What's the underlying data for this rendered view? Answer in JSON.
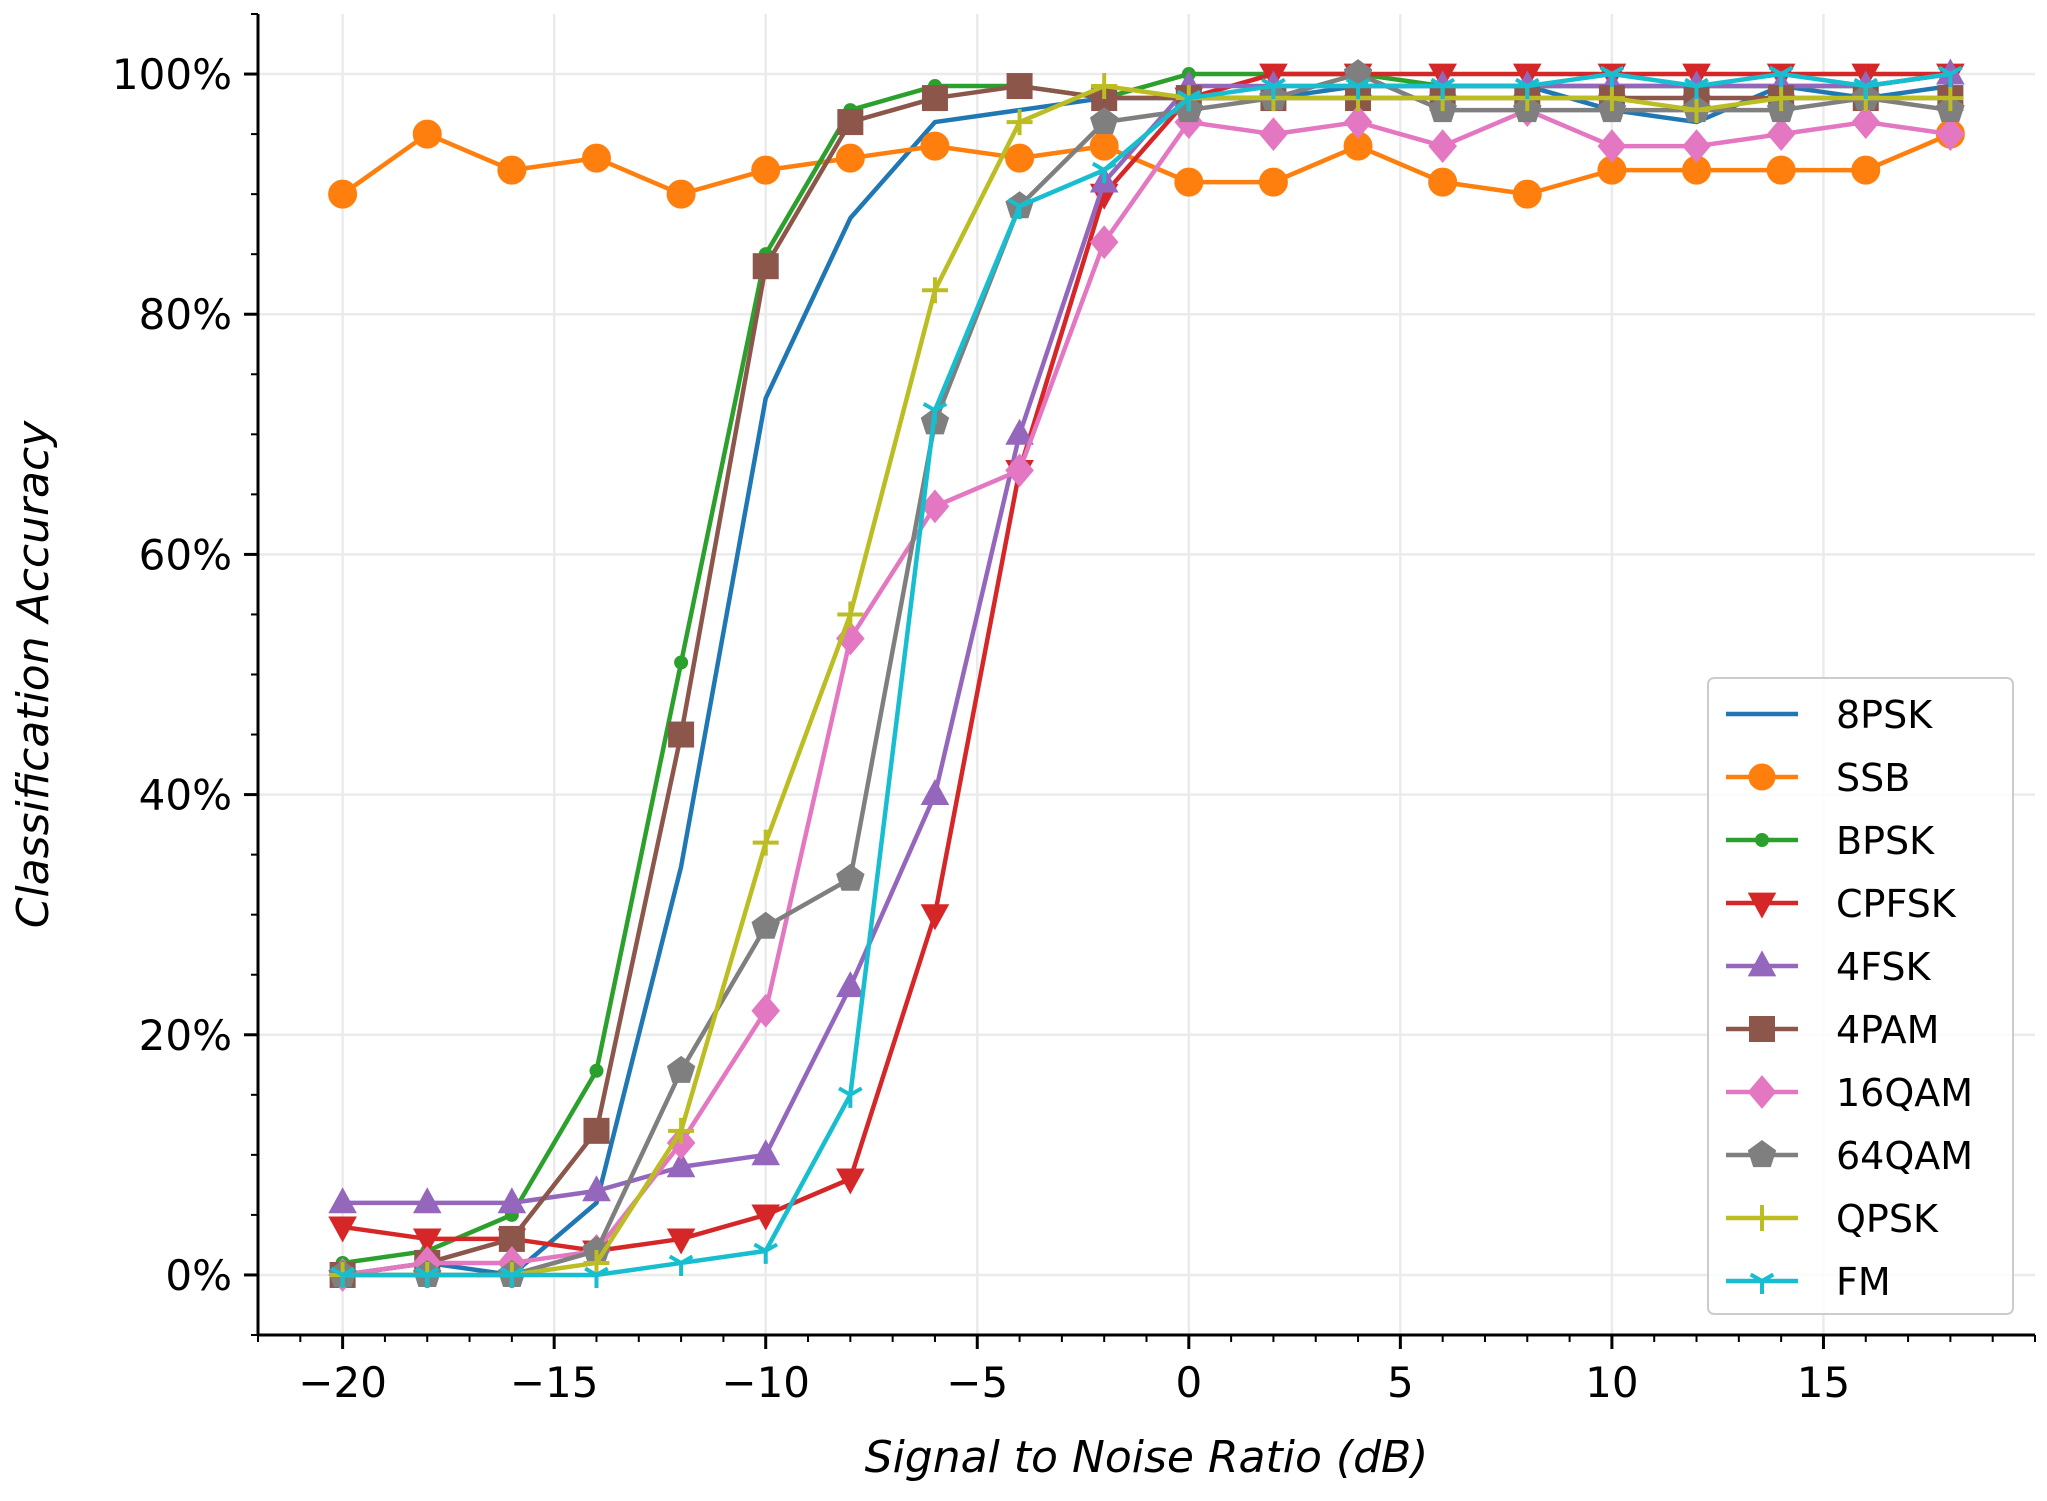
{
  "chart_data": {
    "type": "line",
    "xlabel": "Signal to Noise Ratio (dB)",
    "ylabel": "Classification Accuracy",
    "xlim": [
      -22,
      20
    ],
    "ylim": [
      -0.05,
      1.05
    ],
    "x": [
      -20,
      -18,
      -16,
      -14,
      -12,
      -10,
      -8,
      -6,
      -4,
      -2,
      0,
      2,
      4,
      6,
      8,
      10,
      12,
      14,
      16,
      18
    ],
    "x_ticks": [
      -20,
      -15,
      -10,
      -5,
      0,
      5,
      10,
      15
    ],
    "x_tick_labels": [
      "−20",
      "−15",
      "−10",
      "−5",
      "0",
      "5",
      "10",
      "15"
    ],
    "y_ticks": [
      0,
      0.2,
      0.4,
      0.6,
      0.8,
      1.0
    ],
    "y_tick_labels": [
      "0%",
      "20%",
      "40%",
      "60%",
      "80%",
      "100%"
    ],
    "grid": true,
    "legend_position": "lower-right",
    "series": [
      {
        "name": "8PSK",
        "color": "#1f77b4",
        "marker": "none",
        "values": [
          0.0,
          0.01,
          0.0,
          0.06,
          0.34,
          0.73,
          0.88,
          0.96,
          0.97,
          0.98,
          0.98,
          0.98,
          0.99,
          0.99,
          0.99,
          0.97,
          0.96,
          0.99,
          0.98,
          0.99
        ]
      },
      {
        "name": "SSB",
        "color": "#ff7f0e",
        "marker": "circle",
        "values": [
          0.9,
          0.95,
          0.92,
          0.93,
          0.9,
          0.92,
          0.93,
          0.94,
          0.93,
          0.94,
          0.91,
          0.91,
          0.94,
          0.91,
          0.9,
          0.92,
          0.92,
          0.92,
          0.92,
          0.95
        ]
      },
      {
        "name": "BPSK",
        "color": "#2ca02c",
        "marker": "point",
        "values": [
          0.01,
          0.02,
          0.05,
          0.17,
          0.51,
          0.85,
          0.97,
          0.99,
          0.99,
          0.98,
          1.0,
          1.0,
          1.0,
          0.99,
          0.99,
          0.99,
          0.99,
          0.99,
          0.99,
          1.0
        ]
      },
      {
        "name": "CPFSK",
        "color": "#d62728",
        "marker": "triangle-down",
        "values": [
          0.04,
          0.03,
          0.03,
          0.02,
          0.03,
          0.05,
          0.08,
          0.3,
          0.67,
          0.9,
          0.98,
          1.0,
          1.0,
          1.0,
          1.0,
          1.0,
          1.0,
          1.0,
          1.0,
          1.0
        ]
      },
      {
        "name": "4FSK",
        "color": "#9467bd",
        "marker": "triangle-up",
        "values": [
          0.06,
          0.06,
          0.06,
          0.07,
          0.09,
          0.1,
          0.24,
          0.4,
          0.7,
          0.91,
          0.99,
          0.99,
          0.99,
          0.99,
          0.99,
          0.99,
          0.99,
          0.99,
          0.99,
          1.0
        ]
      },
      {
        "name": "4PAM",
        "color": "#8c564b",
        "marker": "square",
        "values": [
          0.0,
          0.01,
          0.03,
          0.12,
          0.45,
          0.84,
          0.96,
          0.98,
          0.99,
          0.98,
          0.98,
          0.98,
          0.98,
          0.98,
          0.98,
          0.98,
          0.98,
          0.98,
          0.98,
          0.98
        ]
      },
      {
        "name": "16QAM",
        "color": "#e377c2",
        "marker": "diamond",
        "values": [
          0.0,
          0.01,
          0.01,
          0.02,
          0.11,
          0.22,
          0.53,
          0.64,
          0.67,
          0.86,
          0.96,
          0.95,
          0.96,
          0.94,
          0.97,
          0.94,
          0.94,
          0.95,
          0.96,
          0.95
        ]
      },
      {
        "name": "64QAM",
        "color": "#7f7f7f",
        "marker": "pentagon",
        "values": [
          0.0,
          0.0,
          0.0,
          0.02,
          0.17,
          0.29,
          0.33,
          0.71,
          0.89,
          0.96,
          0.97,
          0.98,
          1.0,
          0.97,
          0.97,
          0.97,
          0.97,
          0.97,
          0.98,
          0.97
        ]
      },
      {
        "name": "QPSK",
        "color": "#bcbd22",
        "marker": "plus",
        "values": [
          0.0,
          0.0,
          0.0,
          0.01,
          0.12,
          0.36,
          0.55,
          0.82,
          0.96,
          0.99,
          0.98,
          0.98,
          0.98,
          0.98,
          0.98,
          0.98,
          0.97,
          0.98,
          0.98,
          0.98
        ]
      },
      {
        "name": "FM",
        "color": "#17becf",
        "marker": "tri-down",
        "values": [
          0.0,
          0.0,
          0.0,
          0.0,
          0.01,
          0.02,
          0.15,
          0.72,
          0.89,
          0.92,
          0.98,
          0.99,
          0.99,
          0.99,
          0.99,
          1.0,
          0.99,
          1.0,
          0.99,
          1.0
        ]
      }
    ]
  }
}
